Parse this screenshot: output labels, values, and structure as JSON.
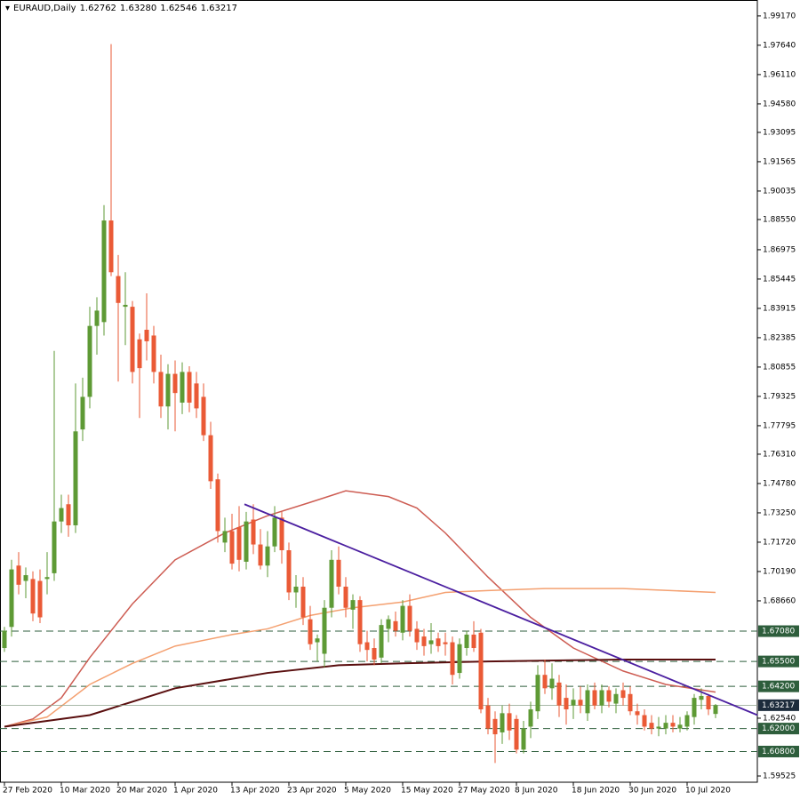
{
  "chart_data": {
    "type": "candlestick",
    "title": "EURAUD,Daily",
    "header_values": [
      1.62762,
      {
        "value": 1.6328,
        "label": "1.63280"
      },
      1.62546,
      1.63217
    ],
    "categories": [
      "27 Feb 2020",
      null,
      null,
      null,
      null,
      null,
      null,
      null,
      "10 Mar 2020",
      null,
      null,
      null,
      null,
      null,
      null,
      null,
      "20 Mar 2020",
      null,
      null,
      null,
      null,
      null,
      null,
      null,
      "1 Apr 2020",
      null,
      null,
      null,
      null,
      null,
      null,
      null,
      "13 Apr 2020",
      null,
      null,
      null,
      null,
      null,
      null,
      null,
      "23 Apr 2020",
      null,
      null,
      null,
      null,
      null,
      null,
      null,
      "5 May 2020",
      null,
      null,
      null,
      null,
      null,
      null,
      null,
      "15 May 2020",
      null,
      null,
      null,
      null,
      null,
      null,
      null,
      "27 May 2020",
      null,
      null,
      null,
      null,
      null,
      null,
      null,
      "8 Jun 2020",
      null,
      null,
      null,
      null,
      null,
      null,
      null,
      "18 Jun 2020",
      null,
      null,
      null,
      null,
      null,
      null,
      null,
      "30 Jun 2020",
      null,
      null,
      null,
      null,
      null,
      null,
      null,
      "10 Jul 2020",
      null,
      null,
      null,
      null
    ],
    "ohlc": [
      [
        1.662,
        1.673,
        1.66,
        1.671
      ],
      [
        1.673,
        1.708,
        1.668,
        1.703
      ],
      [
        1.705,
        1.712,
        1.69,
        1.695
      ],
      [
        1.697,
        1.704,
        1.688,
        1.7
      ],
      [
        1.698,
        1.702,
        1.676,
        1.68
      ],
      [
        1.697,
        1.703,
        1.675,
        1.678
      ],
      [
        1.698,
        1.712,
        1.69,
        1.699
      ],
      [
        1.701,
        1.817,
        1.697,
        1.728
      ],
      [
        1.728,
        1.742,
        1.722,
        1.735
      ],
      [
        1.737,
        1.742,
        1.72,
        1.726
      ],
      [
        1.726,
        1.8,
        1.722,
        1.775
      ],
      [
        1.776,
        1.803,
        1.77,
        1.793
      ],
      [
        1.793,
        1.84,
        1.787,
        1.83
      ],
      [
        1.83,
        1.845,
        1.815,
        1.838
      ],
      [
        1.832,
        1.893,
        1.825,
        1.885
      ],
      [
        1.885,
        1.977,
        1.856,
        1.858
      ],
      [
        1.856,
        1.867,
        1.801,
        1.842
      ],
      [
        1.84,
        1.858,
        1.82,
        1.841
      ],
      [
        1.84,
        1.843,
        1.8,
        1.806
      ],
      [
        1.823,
        1.826,
        1.782,
        1.808
      ],
      [
        1.828,
        1.847,
        1.812,
        1.822
      ],
      [
        1.825,
        1.83,
        1.8,
        1.806
      ],
      [
        1.806,
        1.815,
        1.782,
        1.788
      ],
      [
        1.788,
        1.81,
        1.776,
        1.805
      ],
      [
        1.805,
        1.812,
        1.775,
        1.795
      ],
      [
        1.79,
        1.811,
        1.784,
        1.806
      ],
      [
        1.806,
        1.809,
        1.785,
        1.79
      ],
      [
        1.8,
        1.806,
        1.782,
        1.787
      ],
      [
        1.793,
        1.8,
        1.77,
        1.773
      ],
      [
        1.773,
        1.78,
        1.745,
        1.749
      ],
      [
        1.75,
        1.753,
        1.717,
        1.723
      ],
      [
        1.717,
        1.73,
        1.712,
        1.723
      ],
      [
        1.723,
        1.732,
        1.703,
        1.706
      ],
      [
        1.725,
        1.736,
        1.702,
        1.708
      ],
      [
        1.707,
        1.733,
        1.703,
        1.728
      ],
      [
        1.729,
        1.737,
        1.711,
        1.716
      ],
      [
        1.716,
        1.724,
        1.703,
        1.705
      ],
      [
        1.705,
        1.723,
        1.699,
        1.715
      ],
      [
        1.715,
        1.736,
        1.712,
        1.73
      ],
      [
        1.73,
        1.733,
        1.706,
        1.713
      ],
      [
        1.713,
        1.717,
        1.687,
        1.691
      ],
      [
        1.691,
        1.7,
        1.683,
        1.694
      ],
      [
        1.694,
        1.699,
        1.674,
        1.678
      ],
      [
        1.677,
        1.684,
        1.661,
        1.664
      ],
      [
        1.665,
        1.669,
        1.655,
        1.667
      ],
      [
        1.659,
        1.687,
        1.652,
        1.683
      ],
      [
        1.683,
        1.713,
        1.678,
        1.708
      ],
      [
        1.708,
        1.715,
        1.69,
        1.694
      ],
      [
        1.694,
        1.699,
        1.678,
        1.683
      ],
      [
        1.682,
        1.69,
        1.672,
        1.687
      ],
      [
        1.687,
        1.689,
        1.66,
        1.664
      ],
      [
        1.665,
        1.671,
        1.655,
        1.661
      ],
      [
        1.662,
        1.667,
        1.653,
        1.656
      ],
      [
        1.657,
        1.677,
        1.654,
        1.674
      ],
      [
        1.672,
        1.679,
        1.665,
        1.677
      ],
      [
        1.676,
        1.681,
        1.668,
        1.671
      ],
      [
        1.67,
        1.687,
        1.666,
        1.684
      ],
      [
        1.684,
        1.69,
        1.668,
        1.671
      ],
      [
        1.672,
        1.676,
        1.661,
        1.665
      ],
      [
        1.668,
        1.672,
        1.658,
        1.663
      ],
      [
        1.664,
        1.675,
        1.659,
        1.666
      ],
      [
        1.667,
        1.67,
        1.66,
        1.663
      ],
      [
        1.665,
        1.67,
        1.658,
        1.664
      ],
      [
        1.665,
        1.668,
        1.643,
        1.648
      ],
      [
        1.649,
        1.667,
        1.646,
        1.664
      ],
      [
        1.662,
        1.671,
        1.658,
        1.669
      ],
      [
        1.669,
        1.676,
        1.66,
        1.662
      ],
      [
        1.67,
        1.672,
        1.628,
        1.63
      ],
      [
        1.632,
        1.636,
        1.617,
        1.62
      ],
      [
        1.625,
        1.629,
        1.602,
        1.617
      ],
      [
        1.618,
        1.632,
        1.612,
        1.628
      ],
      [
        1.628,
        1.633,
        1.614,
        1.619
      ],
      [
        1.625,
        1.627,
        1.607,
        1.609
      ],
      [
        1.609,
        1.624,
        1.607,
        1.62
      ],
      [
        1.621,
        1.634,
        1.615,
        1.63
      ],
      [
        1.629,
        1.653,
        1.625,
        1.648
      ],
      [
        1.648,
        1.656,
        1.638,
        1.641
      ],
      [
        1.641,
        1.654,
        1.635,
        1.646
      ],
      [
        1.644,
        1.648,
        1.626,
        1.632
      ],
      [
        1.636,
        1.643,
        1.622,
        1.63
      ],
      [
        1.632,
        1.641,
        1.625,
        1.635
      ],
      [
        1.635,
        1.642,
        1.628,
        1.632
      ],
      [
        1.628,
        1.643,
        1.624,
        1.64
      ],
      [
        1.64,
        1.644,
        1.63,
        1.632
      ],
      [
        1.632,
        1.643,
        1.628,
        1.64
      ],
      [
        1.64,
        1.642,
        1.631,
        1.634
      ],
      [
        1.633,
        1.641,
        1.628,
        1.638
      ],
      [
        1.64,
        1.644,
        1.632,
        1.636
      ],
      [
        1.638,
        1.642,
        1.627,
        1.629
      ],
      [
        1.629,
        1.633,
        1.622,
        1.627
      ],
      [
        1.627,
        1.63,
        1.619,
        1.621
      ],
      [
        1.623,
        1.627,
        1.617,
        1.62
      ],
      [
        1.62,
        1.626,
        1.616,
        1.621
      ],
      [
        1.62,
        1.627,
        1.617,
        1.623
      ],
      [
        1.623,
        1.627,
        1.618,
        1.621
      ],
      [
        1.62,
        1.626,
        1.618,
        1.622
      ],
      [
        1.621,
        1.629,
        1.619,
        1.627
      ],
      [
        1.626,
        1.638,
        1.622,
        1.636
      ],
      [
        1.635,
        1.641,
        1.63,
        1.637
      ],
      [
        1.637,
        1.638,
        1.627,
        1.63
      ],
      [
        1.62762,
        1.6328,
        1.62546,
        1.63217
      ]
    ],
    "up_color": "#5e9a35",
    "down_color": "#ea5a36",
    "lines": [
      {
        "color": "#cd5c52",
        "x": [
          0,
          4,
          8,
          12,
          18,
          24,
          31,
          37,
          43,
          48,
          54,
          58,
          62,
          68,
          74,
          80,
          87,
          93,
          100
        ],
        "values": [
          1.621,
          1.625,
          1.636,
          1.657,
          1.685,
          1.708,
          1.722,
          1.731,
          1.738,
          1.744,
          1.741,
          1.735,
          1.722,
          1.699,
          1.678,
          1.662,
          1.65,
          1.643,
          1.639
        ]
      },
      {
        "color": "#f4a070",
        "x": [
          0,
          6,
          12,
          18,
          24,
          32,
          37,
          43,
          49,
          56,
          62,
          68,
          76,
          87,
          100
        ],
        "values": [
          1.621,
          1.626,
          1.643,
          1.654,
          1.663,
          1.669,
          1.672,
          1.679,
          1.683,
          1.686,
          1.691,
          1.692,
          1.693,
          1.693,
          1.691
        ]
      },
      {
        "color": "#5a0f0f",
        "x": [
          0,
          12,
          24,
          37,
          47,
          56,
          68,
          87,
          100
        ],
        "values": [
          1.621,
          1.627,
          1.641,
          1.649,
          1.653,
          1.654,
          1.655,
          1.656,
          1.656
        ]
      }
    ],
    "trendline": {
      "color": "#4b1fa0",
      "x": [
        33.75,
        105.9
      ],
      "values": [
        1.737,
        1.627
      ]
    },
    "levels": [
      {
        "value": 1.6708,
        "label": "1.67080"
      },
      {
        "value": 1.655,
        "label": "1.65500"
      },
      {
        "value": 1.642,
        "label": "1.64200"
      },
      {
        "value": 1.62,
        "label": "1.62000"
      },
      {
        "value": 1.608,
        "label": "1.60800"
      }
    ],
    "level_color": "#2e5e3c",
    "last_price": 1.63217,
    "last_color": "#1d2c3c",
    "ylim": [
      1.592,
      2.0
    ],
    "yticks": [
      {
        "value": 1.9917,
        "label": "1.99170"
      },
      {
        "value": 1.9764,
        "label": "1.97640"
      },
      {
        "value": 1.9611,
        "label": "1.96110"
      },
      {
        "value": 1.9458,
        "label": "1.94580"
      },
      1.93095,
      1.91565,
      1.90035,
      {
        "value": 1.8855,
        "label": "1.88550"
      },
      1.86975,
      1.85445,
      1.83915,
      1.82385,
      1.80855,
      1.79325,
      1.77795,
      {
        "value": 1.7631,
        "label": "1.76310"
      },
      {
        "value": 1.7478,
        "label": "1.74780"
      },
      {
        "value": 1.7325,
        "label": "1.73250"
      },
      {
        "value": 1.7172,
        "label": "1.71720"
      },
      {
        "value": 1.7019,
        "label": "1.70190"
      },
      {
        "value": 1.6866,
        "label": "1.68660"
      },
      {
        "value": 1.6254,
        "label": "1.62540"
      },
      1.59525
    ]
  }
}
